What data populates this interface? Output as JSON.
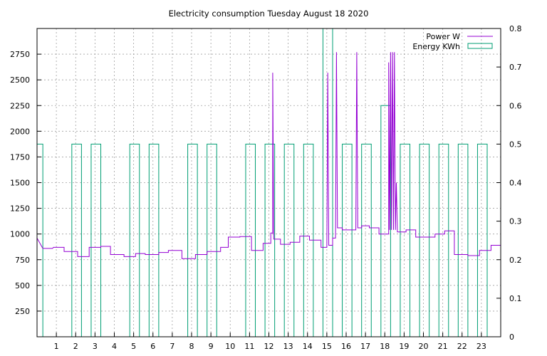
{
  "chart_data": {
    "type": "line",
    "title": "Electricity consumption Tuesday August 18 2020",
    "xlabel": "",
    "ylabel": "",
    "y2label": "",
    "xlim": [
      0,
      24
    ],
    "ylim": [
      0,
      3000
    ],
    "y2lim": [
      0,
      0.8
    ],
    "grid": true,
    "legend_position": "top-right",
    "x_ticks": [
      1,
      2,
      3,
      4,
      5,
      6,
      7,
      8,
      9,
      10,
      11,
      12,
      13,
      14,
      15,
      16,
      17,
      18,
      19,
      20,
      21,
      22,
      23
    ],
    "y_ticks": [
      250,
      500,
      750,
      1000,
      1250,
      1500,
      1750,
      2000,
      2250,
      2500,
      2750
    ],
    "y2_ticks": [
      0,
      0.1,
      0.2,
      0.3,
      0.4,
      0.5,
      0.6,
      0.7,
      0.8
    ],
    "series": [
      {
        "name": "Power W",
        "axis": "y",
        "color": "#9400d3",
        "points": [
          [
            0,
            960
          ],
          [
            0.3,
            860
          ],
          [
            0.8,
            860
          ],
          [
            0.85,
            870
          ],
          [
            1.4,
            870
          ],
          [
            1.4,
            830
          ],
          [
            2.1,
            830
          ],
          [
            2.1,
            780
          ],
          [
            2.7,
            780
          ],
          [
            2.7,
            870
          ],
          [
            3.3,
            870
          ],
          [
            3.3,
            880
          ],
          [
            3.8,
            880
          ],
          [
            3.8,
            800
          ],
          [
            4.5,
            800
          ],
          [
            4.5,
            780
          ],
          [
            5.1,
            780
          ],
          [
            5.1,
            810
          ],
          [
            5.6,
            810
          ],
          [
            5.6,
            800
          ],
          [
            6.3,
            800
          ],
          [
            6.3,
            820
          ],
          [
            6.8,
            820
          ],
          [
            6.8,
            840
          ],
          [
            7.5,
            840
          ],
          [
            7.5,
            760
          ],
          [
            8.2,
            760
          ],
          [
            8.2,
            800
          ],
          [
            8.8,
            800
          ],
          [
            8.8,
            830
          ],
          [
            9.5,
            830
          ],
          [
            9.5,
            870
          ],
          [
            9.9,
            870
          ],
          [
            9.9,
            970
          ],
          [
            10.5,
            970
          ],
          [
            10.5,
            975
          ],
          [
            11.1,
            975
          ],
          [
            11.1,
            840
          ],
          [
            11.7,
            840
          ],
          [
            11.7,
            910
          ],
          [
            12.1,
            910
          ],
          [
            12.1,
            1010
          ],
          [
            12.2,
            1010
          ],
          [
            12.2,
            2570
          ],
          [
            12.25,
            950
          ],
          [
            12.6,
            950
          ],
          [
            12.6,
            900
          ],
          [
            13.1,
            900
          ],
          [
            13.1,
            920
          ],
          [
            13.6,
            920
          ],
          [
            13.6,
            980
          ],
          [
            14.1,
            980
          ],
          [
            14.1,
            940
          ],
          [
            14.7,
            940
          ],
          [
            14.7,
            870
          ],
          [
            15.0,
            870
          ],
          [
            15.05,
            2570
          ],
          [
            15.1,
            890
          ],
          [
            15.3,
            890
          ],
          [
            15.3,
            960
          ],
          [
            15.45,
            960
          ],
          [
            15.5,
            2770
          ],
          [
            15.55,
            1060
          ],
          [
            15.8,
            1060
          ],
          [
            15.8,
            1040
          ],
          [
            16.5,
            1040
          ],
          [
            16.55,
            2770
          ],
          [
            16.6,
            1060
          ],
          [
            16.8,
            1060
          ],
          [
            16.8,
            1080
          ],
          [
            17.2,
            1080
          ],
          [
            17.2,
            1060
          ],
          [
            17.7,
            1060
          ],
          [
            17.7,
            1000
          ],
          [
            18.2,
            1000
          ],
          [
            18.2,
            2670
          ],
          [
            18.25,
            1040
          ],
          [
            18.3,
            2770
          ],
          [
            18.35,
            1040
          ],
          [
            18.4,
            2770
          ],
          [
            18.45,
            1040
          ],
          [
            18.5,
            2770
          ],
          [
            18.55,
            1040
          ],
          [
            18.6,
            1500
          ],
          [
            18.65,
            1020
          ],
          [
            19.1,
            1020
          ],
          [
            19.1,
            1040
          ],
          [
            19.6,
            1040
          ],
          [
            19.6,
            970
          ],
          [
            20.6,
            970
          ],
          [
            20.6,
            1000
          ],
          [
            21.1,
            1000
          ],
          [
            21.1,
            1030
          ],
          [
            21.6,
            1030
          ],
          [
            21.6,
            800
          ],
          [
            22.3,
            800
          ],
          [
            22.3,
            790
          ],
          [
            22.9,
            790
          ],
          [
            22.9,
            840
          ],
          [
            23.5,
            840
          ],
          [
            23.5,
            890
          ],
          [
            24,
            890
          ],
          [
            24,
            940
          ]
        ]
      },
      {
        "name": "Energy KWh",
        "axis": "y2",
        "color": "#009e73",
        "bars": [
          [
            0.0,
            0.3,
            0.5
          ],
          [
            1.8,
            2.3,
            0.5
          ],
          [
            2.8,
            3.3,
            0.5
          ],
          [
            4.8,
            5.3,
            0.5
          ],
          [
            5.8,
            6.3,
            0.5
          ],
          [
            7.8,
            8.3,
            0.5
          ],
          [
            8.8,
            9.3,
            0.5
          ],
          [
            10.8,
            11.3,
            0.5
          ],
          [
            11.8,
            12.3,
            0.5
          ],
          [
            12.8,
            13.3,
            0.5
          ],
          [
            13.8,
            14.3,
            0.5
          ],
          [
            14.8,
            15.3,
            0.8
          ],
          [
            15.8,
            16.3,
            0.5
          ],
          [
            16.8,
            17.3,
            0.5
          ],
          [
            17.8,
            18.3,
            0.6
          ],
          [
            18.8,
            19.3,
            0.5
          ],
          [
            19.8,
            20.3,
            0.5
          ],
          [
            20.8,
            21.3,
            0.5
          ],
          [
            21.8,
            22.3,
            0.5
          ],
          [
            22.8,
            23.3,
            0.5
          ]
        ]
      }
    ]
  }
}
